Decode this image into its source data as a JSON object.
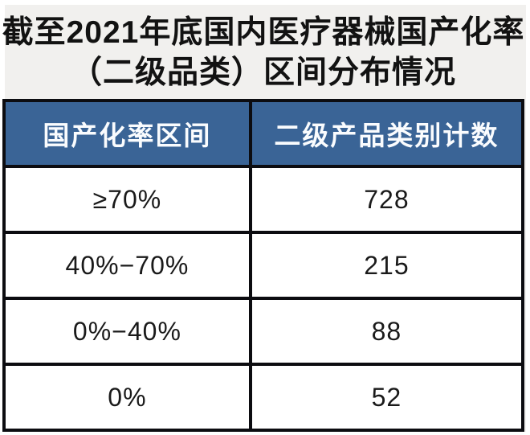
{
  "title": {
    "line1": "截至2021年底国内医疗器械国产化率",
    "line2": "（二级品类）区间分布情况"
  },
  "table": {
    "headers": [
      "国产化率区间",
      "二级产品类别计数"
    ],
    "rows": [
      {
        "range": "≥70%",
        "count": "728"
      },
      {
        "range": "40%−70%",
        "count": "215"
      },
      {
        "range": "0%−40%",
        "count": "88"
      },
      {
        "range": "0%",
        "count": "52"
      }
    ]
  },
  "colors": {
    "header_bg": "#3a6496",
    "header_text": "#fafcfe",
    "border": "#0c0c10",
    "panel_bg": "#f1f0ee",
    "body_text": "#1a1a1a",
    "title_text": "#121212"
  },
  "chart_data": {
    "type": "table",
    "title": "截至2021年底国内医疗器械国产化率（二级品类）区间分布情况",
    "columns": [
      "国产化率区间",
      "二级产品类别计数"
    ],
    "categories": [
      "≥70%",
      "40%−70%",
      "0%−40%",
      "0%"
    ],
    "values": [
      728,
      215,
      88,
      52
    ],
    "layout_hints": {
      "header_style": "steel-blue background, white bold text",
      "grid": "thick black borders",
      "alignment": "all cells centered"
    }
  }
}
